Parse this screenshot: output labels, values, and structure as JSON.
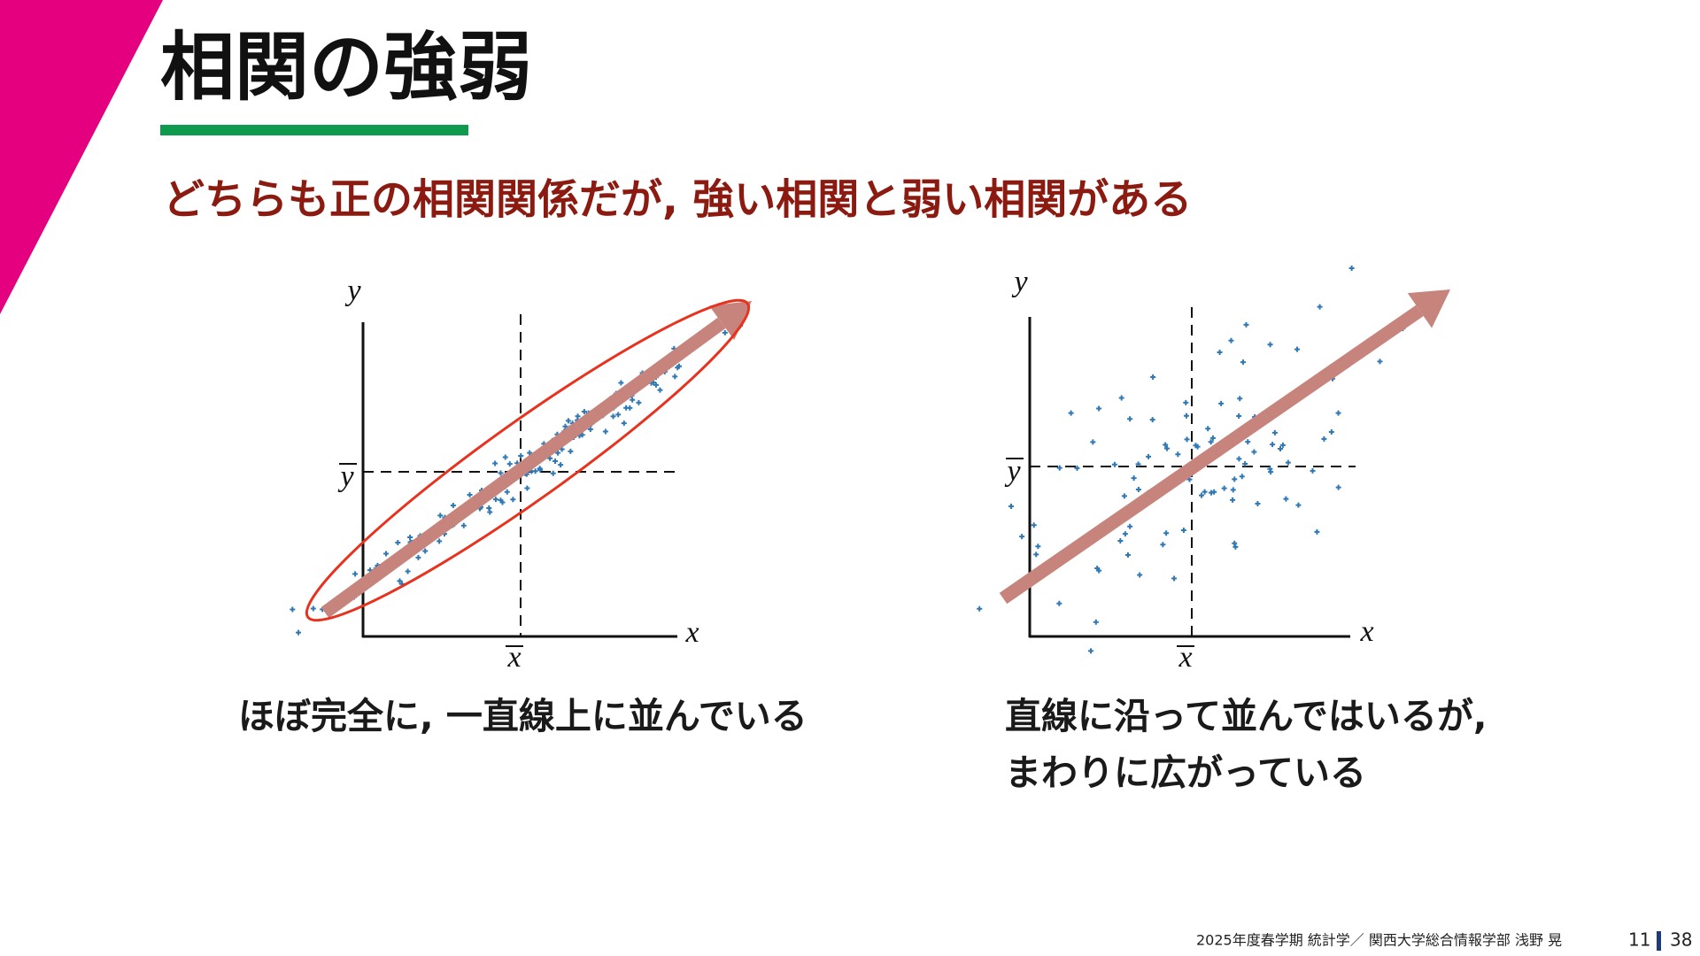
{
  "header": {
    "title": "相関の強弱",
    "subtitle": "どちらも正の相関関係だが, 強い相関と弱い相関がある"
  },
  "plots": [
    {
      "y_label": "y",
      "x_label": "x",
      "x_mean_label": "x",
      "y_mean_label": "y",
      "caption": [
        "ほぼ完全に, 一直線上に並んでいる"
      ]
    },
    {
      "y_label": "y",
      "x_label": "x",
      "x_mean_label": "x",
      "y_mean_label": "y",
      "caption": [
        "直線に沿って並んではいるが,",
        "まわりに広がっている"
      ]
    }
  ],
  "footer": {
    "course": "2025年度春学期  統計学／  関西大学総合情報学部  浅野  晃",
    "page": "11",
    "total": "38"
  }
}
